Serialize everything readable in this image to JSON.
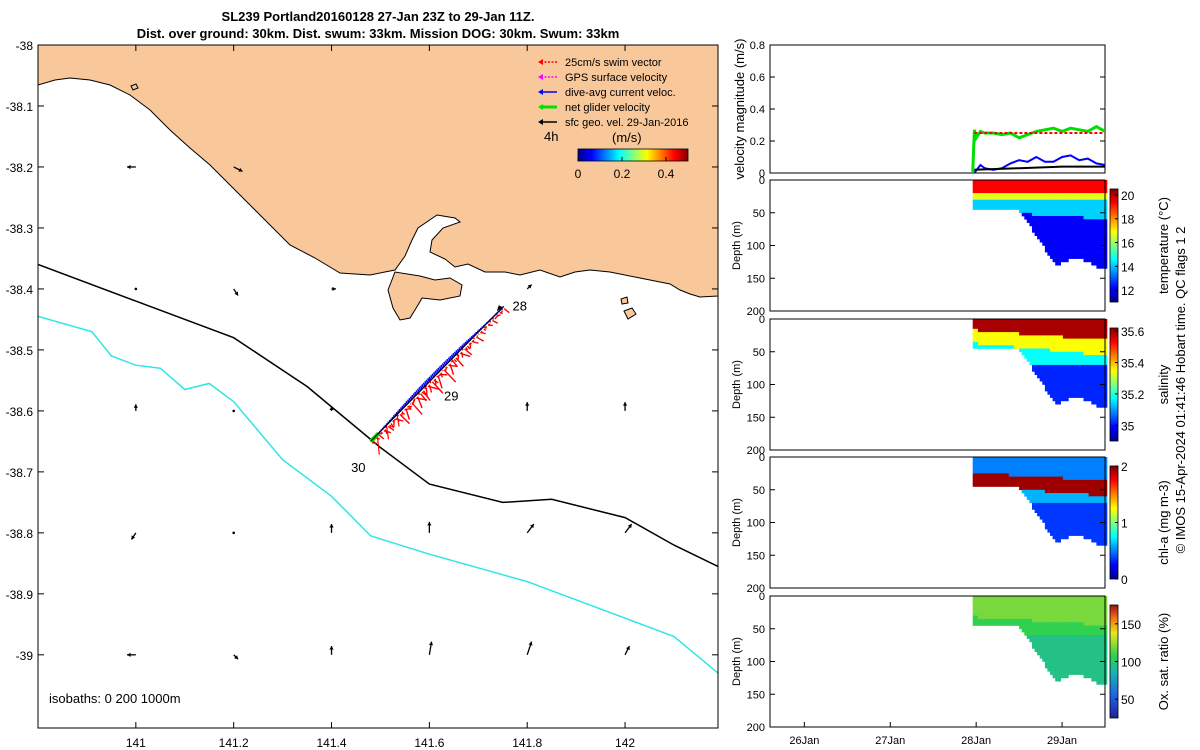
{
  "title": {
    "line1": "SL239 Portland20160128 27-Jan 23Z to 29-Jan 11Z.",
    "line2": "Dist. over ground: 30km. Dist. swum: 33km. Mission DOG: 30km. Swum: 33km"
  },
  "colors": {
    "land": "#F9C89A",
    "track_red": "#ff0000",
    "track_blue": "#0000ff",
    "track_green": "#00e000",
    "isobath_200": "#000000",
    "isobath_1000": "#2ee6e6"
  },
  "chart_data": [
    {
      "type": "scatter",
      "name": "map",
      "xlim": [
        140.8,
        142.19
      ],
      "ylim": [
        -39.12,
        -38.0
      ],
      "x_ticks": [
        "141",
        "141.2",
        "141.4",
        "141.6",
        "141.8",
        "142"
      ],
      "x_tick_values": [
        141.0,
        141.2,
        141.4,
        141.6,
        141.8,
        142.0
      ],
      "y_ticks": [
        "-38",
        "-38.1",
        "-38.2",
        "-38.3",
        "-38.4",
        "-38.5",
        "-38.6",
        "-38.7",
        "-38.8",
        "-38.9",
        "-39"
      ],
      "y_tick_values": [
        -38.0,
        -38.1,
        -38.2,
        -38.3,
        -38.4,
        -38.5,
        -38.6,
        -38.7,
        -38.8,
        -38.9,
        -39.0
      ],
      "isobaths_label": "isobaths: 0   200  1000m",
      "colorbar": {
        "title": "(m/s)",
        "ticks": [
          "0",
          "0.2",
          "0.4"
        ],
        "tick_values": [
          0,
          0.2,
          0.4
        ],
        "range": [
          0,
          0.5
        ]
      },
      "legend": {
        "items": [
          {
            "label": "25cm/s swim vector",
            "color": "#ff0000"
          },
          {
            "label": "GPS surface velocity",
            "color": "#ff00ff"
          },
          {
            "label": "dive-avg current veloc.",
            "color": "#0000ff"
          },
          {
            "label": "net glider velocity",
            "color": "#00e000"
          },
          {
            "label": "sfc geo. vel. 29-Jan-2016",
            "color": "#000000"
          }
        ],
        "tag": "4h"
      },
      "track": {
        "start": {
          "lon": 141.48,
          "lat": -38.65
        },
        "end": {
          "lon": 141.75,
          "lat": -38.43
        }
      },
      "day_labels": [
        {
          "label": "28",
          "lon": 141.77,
          "lat": -38.435
        },
        {
          "label": "29",
          "lon": 141.63,
          "lat": -38.583
        },
        {
          "label": "30",
          "lon": 141.44,
          "lat": -38.7
        }
      ],
      "isobath_200m": [
        [
          140.8,
          -38.36
        ],
        [
          141.0,
          -38.42
        ],
        [
          141.2,
          -38.48
        ],
        [
          141.35,
          -38.56
        ],
        [
          141.5,
          -38.66
        ],
        [
          141.6,
          -38.72
        ],
        [
          141.75,
          -38.75
        ],
        [
          141.85,
          -38.745
        ],
        [
          142.0,
          -38.775
        ],
        [
          142.1,
          -38.82
        ],
        [
          142.19,
          -38.855
        ]
      ],
      "isobath_1000m": [
        [
          140.8,
          -38.445
        ],
        [
          140.91,
          -38.47
        ],
        [
          140.95,
          -38.51
        ],
        [
          141.0,
          -38.525
        ],
        [
          141.05,
          -38.53
        ],
        [
          141.1,
          -38.565
        ],
        [
          141.15,
          -38.555
        ],
        [
          141.2,
          -38.585
        ],
        [
          141.3,
          -38.68
        ],
        [
          141.4,
          -38.74
        ],
        [
          141.48,
          -38.805
        ],
        [
          141.6,
          -38.835
        ],
        [
          141.8,
          -38.88
        ],
        [
          142.0,
          -38.94
        ],
        [
          142.1,
          -38.97
        ],
        [
          142.19,
          -39.03
        ]
      ],
      "arrows": [
        {
          "lon": 141.0,
          "lat": -38.2,
          "u": -0.004,
          "v": 0.0
        },
        {
          "lon": 141.2,
          "lat": -38.2,
          "u": 0.004,
          "v": -0.002
        },
        {
          "lon": 141.0,
          "lat": -38.4,
          "u": 0.0,
          "v": 0.0
        },
        {
          "lon": 141.2,
          "lat": -38.4,
          "u": 0.002,
          "v": -0.003
        },
        {
          "lon": 141.4,
          "lat": -38.4,
          "u": 0.002,
          "v": 0.0
        },
        {
          "lon": 141.8,
          "lat": -38.4,
          "u": 0.002,
          "v": 0.002
        },
        {
          "lon": 141.0,
          "lat": -38.6,
          "u": 0.0,
          "v": 0.003
        },
        {
          "lon": 141.2,
          "lat": -38.6,
          "u": 0.0,
          "v": 0.0
        },
        {
          "lon": 141.4,
          "lat": -38.6,
          "u": 0.0,
          "v": 0.002
        },
        {
          "lon": 141.8,
          "lat": -38.6,
          "u": 0.0,
          "v": 0.004
        },
        {
          "lon": 142.0,
          "lat": -38.6,
          "u": 0.0,
          "v": 0.004
        },
        {
          "lon": 141.0,
          "lat": -38.8,
          "u": -0.002,
          "v": -0.003
        },
        {
          "lon": 141.2,
          "lat": -38.8,
          "u": 0.0,
          "v": 0.0
        },
        {
          "lon": 141.4,
          "lat": -38.8,
          "u": 0.0,
          "v": 0.004
        },
        {
          "lon": 141.6,
          "lat": -38.8,
          "u": 0.0,
          "v": 0.005
        },
        {
          "lon": 141.8,
          "lat": -38.8,
          "u": 0.003,
          "v": 0.004
        },
        {
          "lon": 142.0,
          "lat": -38.8,
          "u": 0.003,
          "v": 0.004
        },
        {
          "lon": 141.0,
          "lat": -39.0,
          "u": -0.004,
          "v": 0.0
        },
        {
          "lon": 141.2,
          "lat": -39.0,
          "u": 0.002,
          "v": -0.002
        },
        {
          "lon": 141.4,
          "lat": -39.0,
          "u": 0.0,
          "v": 0.004
        },
        {
          "lon": 141.6,
          "lat": -39.0,
          "u": 0.001,
          "v": 0.006
        },
        {
          "lon": 141.8,
          "lat": -39.0,
          "u": 0.002,
          "v": 0.006
        },
        {
          "lon": 142.0,
          "lat": -39.0,
          "u": 0.002,
          "v": 0.004
        }
      ]
    },
    {
      "type": "line",
      "name": "velocity",
      "ylabel": "velocity magnitude (m/s)",
      "ylim": [
        0,
        0.8
      ],
      "y_ticks": [
        "0",
        "0.2",
        "0.4",
        "0.6",
        "0.8"
      ],
      "y_tick_values": [
        0,
        0.2,
        0.4,
        0.6,
        0.8
      ],
      "xlim": [
        25.6,
        29.5
      ],
      "series": [
        {
          "name": "net glider velocity",
          "color": "#00e000",
          "x": [
            27.96,
            27.98,
            28.0,
            28.05,
            28.1,
            28.2,
            28.3,
            28.4,
            28.5,
            28.6,
            28.7,
            28.8,
            28.9,
            29.0,
            29.1,
            29.2,
            29.3,
            29.4,
            29.5
          ],
          "y": [
            0.0,
            0.27,
            0.22,
            0.26,
            0.25,
            0.25,
            0.24,
            0.25,
            0.22,
            0.24,
            0.26,
            0.27,
            0.28,
            0.26,
            0.28,
            0.27,
            0.26,
            0.29,
            0.26
          ]
        },
        {
          "name": "25cm/s swim vector",
          "color": "#ff0000",
          "x": [
            27.98,
            28.5,
            29.0,
            29.5
          ],
          "y": [
            0.25,
            0.25,
            0.25,
            0.25
          ]
        },
        {
          "name": "dive-avg current veloc.",
          "color": "#0000ff",
          "x": [
            27.98,
            28.05,
            28.1,
            28.2,
            28.3,
            28.4,
            28.5,
            28.6,
            28.7,
            28.8,
            28.9,
            29.0,
            29.1,
            29.2,
            29.3,
            29.4,
            29.5
          ],
          "y": [
            0.0,
            0.05,
            0.03,
            0.02,
            0.03,
            0.06,
            0.08,
            0.07,
            0.1,
            0.07,
            0.07,
            0.1,
            0.11,
            0.08,
            0.09,
            0.06,
            0.05
          ]
        },
        {
          "name": "sfc geo. vel. 29-Jan-2016",
          "color": "#000000",
          "x": [
            27.98,
            28.5,
            29.0,
            29.5
          ],
          "y": [
            0.02,
            0.03,
            0.04,
            0.04
          ]
        }
      ]
    },
    {
      "type": "heatmap",
      "name": "temperature",
      "colorbar_label": "temperature (°C)",
      "ylabel": "Depth (m)",
      "ylim": [
        200,
        0
      ],
      "y_ticks": [
        "0",
        "50",
        "100",
        "150",
        "200"
      ],
      "y_tick_values": [
        0,
        50,
        100,
        150,
        200
      ],
      "colorbar_ticks": [
        "12",
        "14",
        "16",
        "18",
        "20"
      ],
      "colorbar_tick_values": [
        12,
        14,
        16,
        18,
        20
      ],
      "colorbar_range": [
        11,
        20.5
      ]
    },
    {
      "type": "heatmap",
      "name": "salinity",
      "colorbar_label": "salinity",
      "ylabel": "Depth (m)",
      "ylim": [
        200,
        0
      ],
      "y_ticks": [
        "0",
        "50",
        "100",
        "150",
        "200"
      ],
      "y_tick_values": [
        0,
        50,
        100,
        150,
        200
      ],
      "colorbar_ticks": [
        "35",
        "35.2",
        "35.4",
        "35.6"
      ],
      "colorbar_tick_values": [
        35.0,
        35.2,
        35.4,
        35.6
      ],
      "colorbar_range": [
        34.9,
        35.62
      ]
    },
    {
      "type": "heatmap",
      "name": "chl-a",
      "colorbar_label": "chl-a (mg m-3)",
      "ylabel": "Depth (m)",
      "ylim": [
        200,
        0
      ],
      "y_ticks": [
        "0",
        "50",
        "100",
        "150",
        "200"
      ],
      "y_tick_values": [
        0,
        50,
        100,
        150,
        200
      ],
      "colorbar_ticks": [
        "0",
        "1",
        "2"
      ],
      "colorbar_tick_values": [
        0,
        1,
        2
      ],
      "colorbar_range": [
        0,
        2
      ]
    },
    {
      "type": "heatmap",
      "name": "oxygen",
      "colorbar_label": "Ox. sat. ratio (%)",
      "ylabel": "Depth (m)",
      "ylim": [
        200,
        0
      ],
      "y_ticks": [
        "0",
        "50",
        "100",
        "150",
        "200"
      ],
      "y_tick_values": [
        0,
        50,
        100,
        150,
        200
      ],
      "colorbar_ticks": [
        "50",
        "100",
        "150"
      ],
      "colorbar_tick_values": [
        50,
        100,
        150
      ],
      "colorbar_range": [
        25,
        175
      ],
      "x_ticks": [
        "26Jan",
        "27Jan",
        "28Jan",
        "29Jan"
      ],
      "x_tick_values": [
        26,
        27,
        28,
        29
      ]
    }
  ],
  "credit": "© IMOS 15-Apr-2024 01:41:46 Hobart time. QC flags 1  2"
}
